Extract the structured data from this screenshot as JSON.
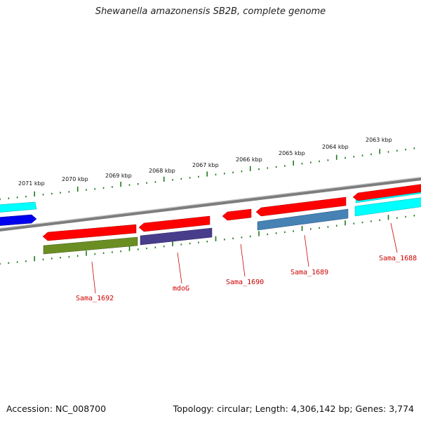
{
  "title": "Shewanella amazonensis SB2B, complete genome",
  "footer": {
    "accession": "Accession: NC_008700",
    "summary": "Topology: circular; Length: 4,306,142 bp; Genes: 3,774"
  },
  "scale_labels": [
    "2071 kbp",
    "2070 kbp",
    "2069 kbp",
    "2068 kbp",
    "2067 kbp",
    "2066 kbp",
    "2065 kbp",
    "2064 kbp",
    "2063 kbp"
  ],
  "gene_labels": [
    "Sama_1692",
    "mdoG",
    "Sama_1690",
    "Sama_1689",
    "Sama_1688"
  ],
  "colors": {
    "backbone": "#7a7a7a",
    "tick": "#1a7a1a",
    "cds": "#ff0000",
    "label": "#cc0000",
    "cyan_gene": "#00ffff",
    "blue_gene": "#0000ee",
    "olive_gene": "#6b8e23",
    "purple_gene": "#483d8b",
    "steel_gene": "#4682b4"
  }
}
